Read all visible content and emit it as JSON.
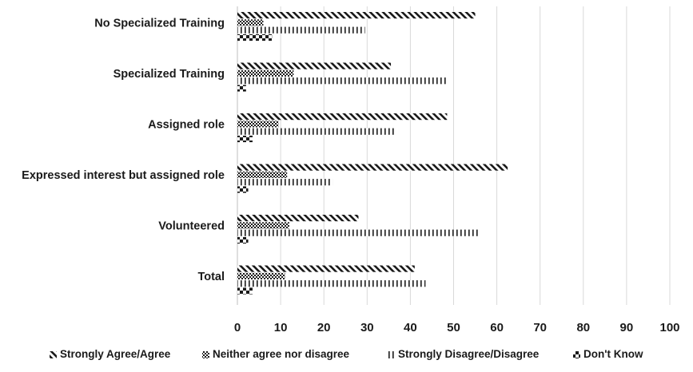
{
  "chart_data": {
    "type": "bar",
    "orientation": "horizontal",
    "title": "",
    "xlabel": "",
    "ylabel": "",
    "xlim": [
      0,
      100
    ],
    "x_ticks": [
      0,
      10,
      20,
      30,
      40,
      50,
      60,
      70,
      80,
      90,
      100
    ],
    "grid": true,
    "legend_position": "bottom",
    "categories": [
      "No Specialized Training",
      "Specialized Training",
      "Assigned role",
      "Expressed interest but assigned role",
      "Volunteered",
      "Total"
    ],
    "series": [
      {
        "name": "Strongly Agree/Agree",
        "pattern": "diagonal",
        "values": [
          55,
          35.5,
          48.5,
          62.5,
          28,
          41
        ]
      },
      {
        "name": "Neither agree nor disagree",
        "pattern": "checker",
        "values": [
          6,
          13,
          9.5,
          11.5,
          12,
          11
        ]
      },
      {
        "name": "Strongly Disagree/Disagree",
        "pattern": "vertical",
        "values": [
          29.5,
          48.5,
          36.5,
          22,
          56,
          43.5
        ]
      },
      {
        "name": "Don't Know",
        "pattern": "wave",
        "values": [
          8,
          2,
          3.5,
          2.5,
          2.5,
          3.5
        ]
      }
    ],
    "colors": {
      "pattern_ink": "#1a1a1a",
      "grid": "#d9d9d9",
      "axis": "#bfbfbf"
    }
  }
}
